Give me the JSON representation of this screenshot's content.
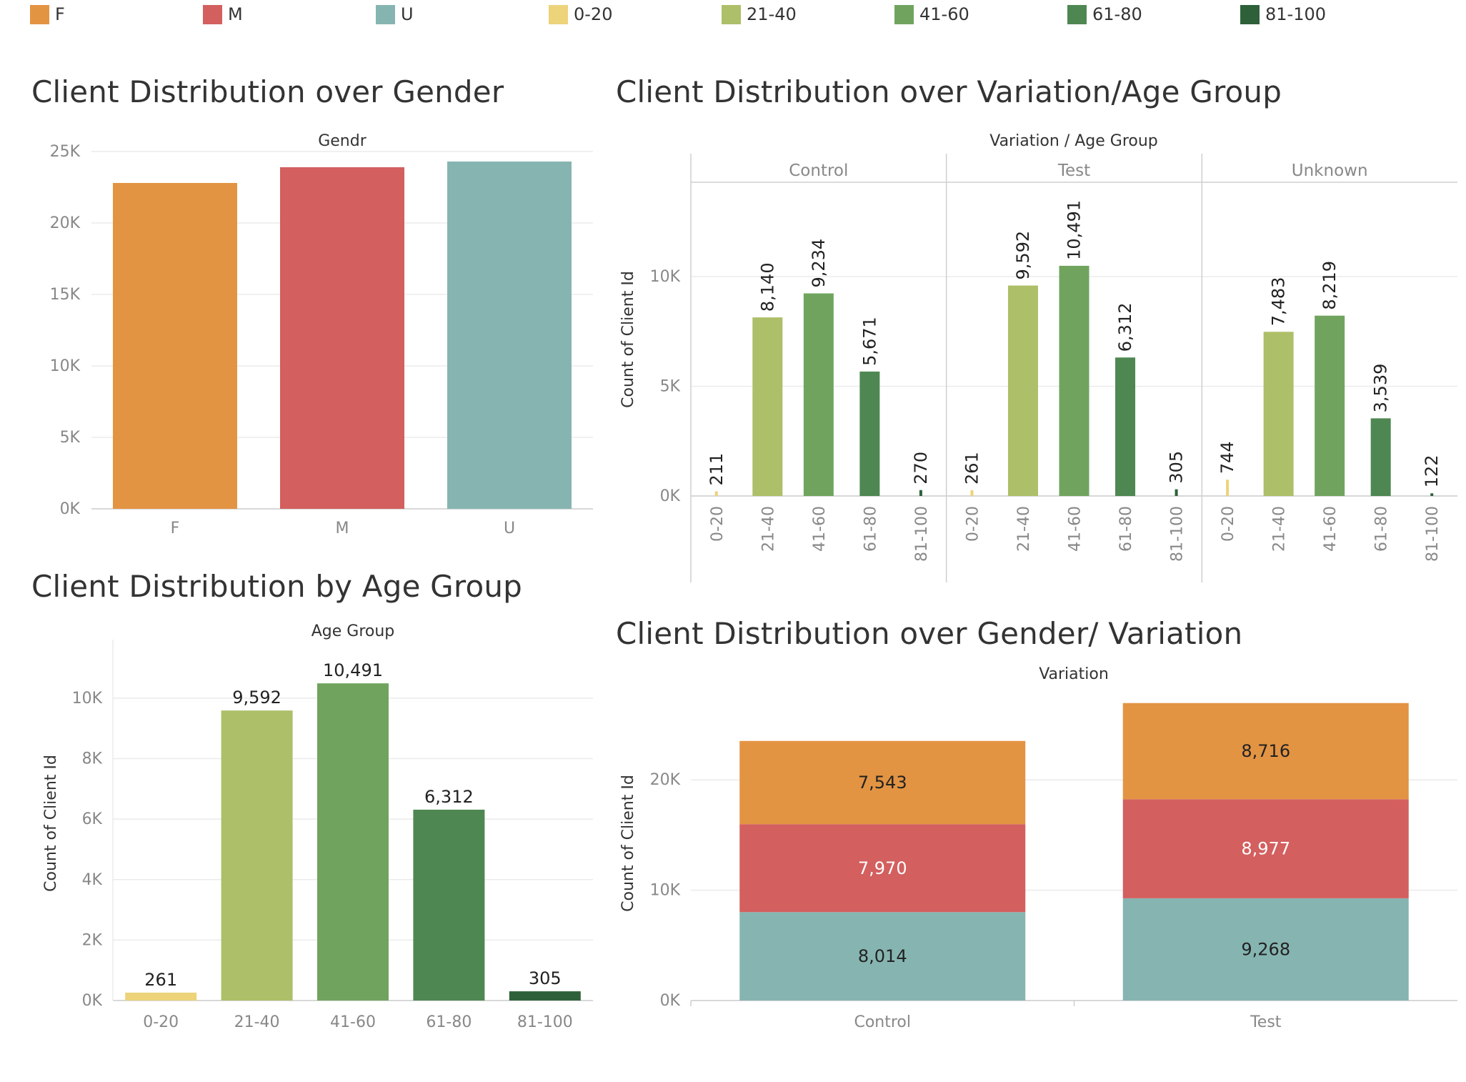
{
  "legend": [
    {
      "label": "F",
      "color": "#E39443"
    },
    {
      "label": "M",
      "color": "#D35F5F"
    },
    {
      "label": "U",
      "color": "#86B5B1"
    },
    {
      "label": "0-20",
      "color": "#EDD37A"
    },
    {
      "label": "21-40",
      "color": "#ADBF68"
    },
    {
      "label": "41-60",
      "color": "#70A45E"
    },
    {
      "label": "61-80",
      "color": "#4E8752"
    },
    {
      "label": "81-100",
      "color": "#2E613A"
    }
  ],
  "titles": {
    "gender": "Client Distribution over Gender",
    "variation_age": "Client Distribution over Variation/Age Group",
    "age": "Client Distribution by Age Group",
    "gender_variation": "Client Distribution over Gender/ Variation"
  },
  "chart_data": [
    {
      "id": "gender",
      "type": "bar",
      "header": "Gendr",
      "categories": [
        "F",
        "M",
        "U"
      ],
      "values": [
        22800,
        23900,
        24300
      ],
      "ylim": [
        0,
        25000
      ],
      "yticks": [
        "0K",
        "5K",
        "10K",
        "15K",
        "20K",
        "25K"
      ]
    },
    {
      "id": "variation_age",
      "type": "bar",
      "header": "Variation  /  Age Group",
      "ylabel": "Count of Client Id",
      "panels": [
        "Control",
        "Test",
        "Unknown"
      ],
      "categories": [
        "0-20",
        "21-40",
        "41-60",
        "61-80",
        "81-100"
      ],
      "values": [
        [
          211,
          8140,
          9234,
          5671,
          270
        ],
        [
          261,
          9592,
          10491,
          6312,
          305
        ],
        [
          744,
          7483,
          8219,
          3539,
          122
        ]
      ],
      "labels": [
        [
          "211",
          "8,140",
          "9,234",
          "5,671",
          "270"
        ],
        [
          "261",
          "9,592",
          "10,491",
          "6,312",
          "305"
        ],
        [
          "744",
          "7,483",
          "8,219",
          "3,539",
          "122"
        ]
      ],
      "ylim": [
        0,
        14300
      ],
      "yticks": [
        "0K",
        "5K",
        "10K"
      ]
    },
    {
      "id": "age",
      "type": "bar",
      "header": "Age Group",
      "ylabel": "Count of Client Id",
      "categories": [
        "0-20",
        "21-40",
        "41-60",
        "61-80",
        "81-100"
      ],
      "values": [
        261,
        9592,
        10491,
        6312,
        305
      ],
      "labels": [
        "261",
        "9,592",
        "10,491",
        "6,312",
        "305"
      ],
      "ylim": [
        0,
        11700
      ],
      "yticks": [
        "0K",
        "2K",
        "4K",
        "6K",
        "8K",
        "10K"
      ]
    },
    {
      "id": "gender_variation",
      "type": "bar",
      "stacked": true,
      "header": "Variation",
      "ylabel": "Count of Client Id",
      "categories": [
        "Control",
        "Test"
      ],
      "series": [
        {
          "name": "U",
          "values": [
            8014,
            9268
          ],
          "labels": [
            "8,014",
            "9,268"
          ]
        },
        {
          "name": "M",
          "values": [
            7970,
            8977
          ],
          "labels": [
            "7,970",
            "8,977"
          ]
        },
        {
          "name": "F",
          "values": [
            7543,
            8716
          ],
          "labels": [
            "7,543",
            "8,716"
          ]
        }
      ],
      "ylim": [
        0,
        28500
      ],
      "yticks": [
        "0K",
        "10K",
        "20K"
      ]
    }
  ]
}
